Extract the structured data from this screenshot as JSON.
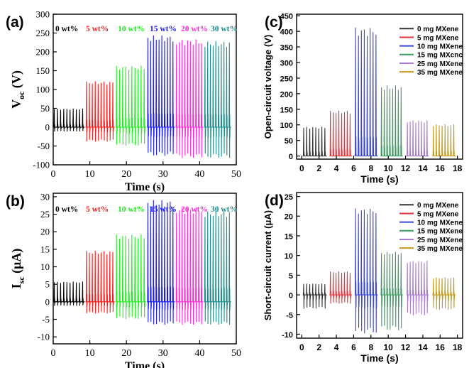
{
  "chart_data": [
    {
      "panel_label": "(a)",
      "type": "line",
      "xlabel": "Time (s)",
      "ylabel_main": "V",
      "ylabel_sub": "oc",
      "ylabel_unit": "(V)",
      "xlim": [
        0,
        50
      ],
      "ylim": [
        -100,
        300
      ],
      "xticks": [
        "0",
        "10",
        "20",
        "30",
        "40",
        "50"
      ],
      "yticks": [
        "-100",
        "-50",
        "0",
        "50",
        "100",
        "150",
        "200",
        "250",
        "300"
      ],
      "series": [
        {
          "name": "0 wt%",
          "color": "#000000",
          "t_start": 0,
          "t_end": 8.6,
          "pulses": 10,
          "peak": 47,
          "valley": -10
        },
        {
          "name": "5 wt%",
          "color": "#ff1a1a",
          "t_start": 8.8,
          "t_end": 16.8,
          "pulses": 10,
          "peak": 117,
          "valley": -35
        },
        {
          "name": "10 wt%",
          "color": "#22ee22",
          "t_start": 17.0,
          "t_end": 25.4,
          "pulses": 10,
          "peak": 157,
          "valley": -45
        },
        {
          "name": "15 wt%",
          "color": "#1a1aff",
          "t_start": 25.6,
          "t_end": 33.2,
          "pulses": 10,
          "peak": 235,
          "valley": -70
        },
        {
          "name": "20 wt%",
          "color": "#ff2ad4",
          "t_start": 33.4,
          "t_end": 41.0,
          "pulses": 10,
          "peak": 225,
          "valley": -75
        },
        {
          "name": "30 wt%",
          "color": "#1a8c8c",
          "t_start": 41.2,
          "t_end": 48.6,
          "pulses": 10,
          "peak": 220,
          "valley": -75
        }
      ]
    },
    {
      "panel_label": "(b)",
      "type": "line",
      "xlabel": "Time (s)",
      "ylabel_main": "I",
      "ylabel_sub": "sc",
      "ylabel_unit": "(μA)",
      "xlim": [
        0,
        50
      ],
      "ylim": [
        -12,
        31
      ],
      "xticks": [
        "0",
        "10",
        "20",
        "30",
        "40",
        "50"
      ],
      "yticks": [
        "-10",
        "-5",
        "0",
        "5",
        "10",
        "15",
        "20",
        "25",
        "30"
      ],
      "series": [
        {
          "name": "0 wt%",
          "color": "#000000",
          "t_start": 0,
          "t_end": 8.6,
          "pulses": 10,
          "peak": 5.5,
          "valley": -1
        },
        {
          "name": "5 wt%",
          "color": "#ff1a1a",
          "t_start": 8.8,
          "t_end": 16.8,
          "pulses": 10,
          "peak": 14,
          "valley": -3
        },
        {
          "name": "10 wt%",
          "color": "#22ee22",
          "t_start": 17.0,
          "t_end": 25.4,
          "pulses": 10,
          "peak": 18.5,
          "valley": -4.5
        },
        {
          "name": "15 wt%",
          "color": "#1a1aff",
          "t_start": 25.6,
          "t_end": 33.2,
          "pulses": 10,
          "peak": 28,
          "valley": -6
        },
        {
          "name": "20 wt%",
          "color": "#ff2ad4",
          "t_start": 33.4,
          "t_end": 41.0,
          "pulses": 10,
          "peak": 26,
          "valley": -6
        },
        {
          "name": "30 wt%",
          "color": "#1a8c8c",
          "t_start": 41.2,
          "t_end": 48.6,
          "pulses": 10,
          "peak": 25,
          "valley": -6
        }
      ]
    },
    {
      "panel_label": "(c)",
      "type": "line",
      "xlabel": "Time (s)",
      "ylabel": "Open-circuit voltage (V)",
      "xlim": [
        -0.6,
        18.6
      ],
      "ylim": [
        -10,
        455
      ],
      "xticks": [
        "0",
        "2",
        "4",
        "6",
        "8",
        "10",
        "12",
        "14",
        "16",
        "18"
      ],
      "yticks": [
        "0",
        "50",
        "100",
        "150",
        "200",
        "250",
        "300",
        "350",
        "400",
        "450"
      ],
      "series": [
        {
          "name": "0 mg MXene",
          "color": "#333333",
          "t_start": 0.1,
          "t_end": 2.9,
          "pulses": 8,
          "peak": 90,
          "valley": 0
        },
        {
          "name": "5 mg MXene",
          "color": "#e8333a",
          "t_start": 3.2,
          "t_end": 5.8,
          "pulses": 8,
          "peak": 140,
          "valley": 0
        },
        {
          "name": "10 mg MXene",
          "color": "#3a46d8",
          "t_start": 6.1,
          "t_end": 8.8,
          "pulses": 8,
          "peak": 398,
          "valley": 0
        },
        {
          "name": "15 mg MXcnc",
          "color": "#3c9a5f",
          "t_start": 9.1,
          "t_end": 11.7,
          "pulses": 8,
          "peak": 218,
          "valley": 0
        },
        {
          "name": "25 mg MXene",
          "color": "#a77bd0",
          "t_start": 12.1,
          "t_end": 14.7,
          "pulses": 8,
          "peak": 110,
          "valley": 0
        },
        {
          "name": "35 mg MXene",
          "color": "#c49a1c",
          "t_start": 15.1,
          "t_end": 17.8,
          "pulses": 8,
          "peak": 98,
          "valley": 0
        }
      ]
    },
    {
      "panel_label": "(d)",
      "type": "line",
      "xlabel": "Time (s)",
      "ylabel": "Short-circuit current (μA)",
      "xlim": [
        -0.6,
        18.6
      ],
      "ylim": [
        -11,
        26
      ],
      "xticks": [
        "0",
        "2",
        "4",
        "6",
        "8",
        "10",
        "12",
        "14",
        "16",
        "18"
      ],
      "yticks": [
        "-10",
        "-5",
        "0",
        "5",
        "10",
        "15",
        "20",
        "25"
      ],
      "series": [
        {
          "name": "0 mg MXene",
          "color": "#333333",
          "t_start": 0.1,
          "t_end": 2.9,
          "pulses": 8,
          "peak": 2.7,
          "valley": -3.2
        },
        {
          "name": "5 mg MXene",
          "color": "#e8333a",
          "t_start": 3.2,
          "t_end": 5.8,
          "pulses": 8,
          "peak": 5.7,
          "valley": -2
        },
        {
          "name": "10 mg MXene",
          "color": "#3a46d8",
          "t_start": 6.1,
          "t_end": 8.8,
          "pulses": 8,
          "peak": 21.2,
          "valley": -9
        },
        {
          "name": "15 mg MXene",
          "color": "#3c9a5f",
          "t_start": 9.1,
          "t_end": 11.7,
          "pulses": 8,
          "peak": 10.5,
          "valley": -8.3
        },
        {
          "name": "25 mg MXene",
          "color": "#a77bd0",
          "t_start": 12.1,
          "t_end": 14.7,
          "pulses": 8,
          "peak": 8.3,
          "valley": -4.8
        },
        {
          "name": "35 mg MXene",
          "color": "#c49a1c",
          "t_start": 15.1,
          "t_end": 17.8,
          "pulses": 8,
          "peak": 4.2,
          "valley": -3.5
        }
      ]
    }
  ]
}
